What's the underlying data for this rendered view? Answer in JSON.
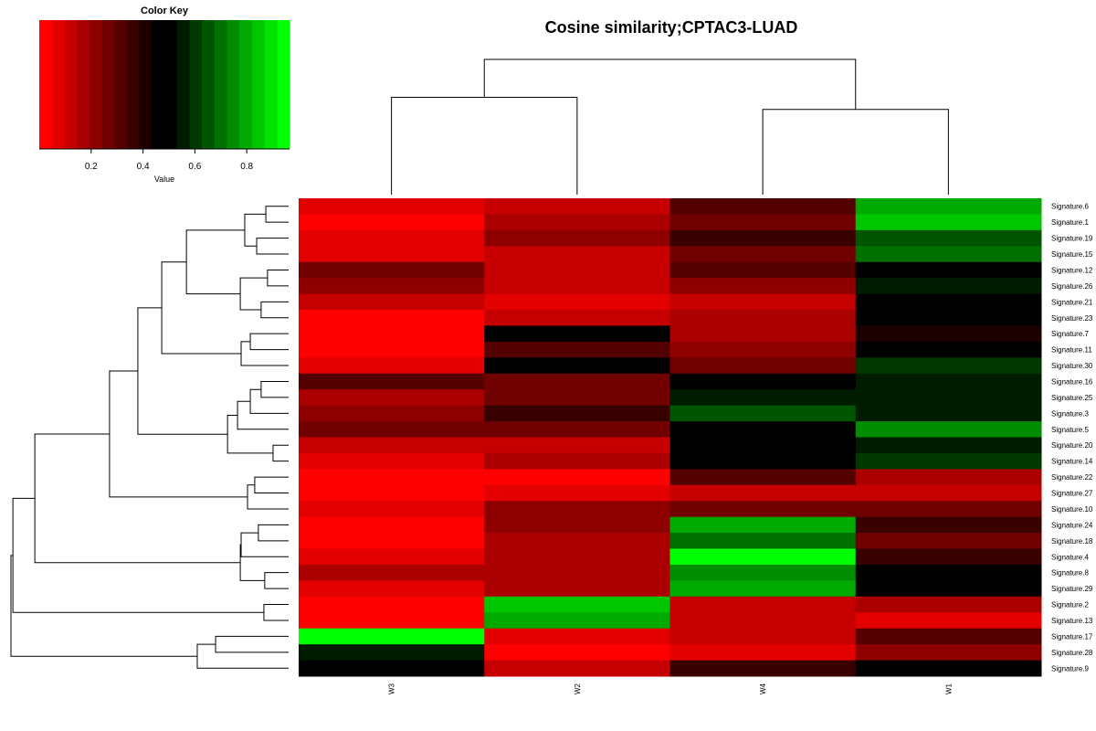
{
  "chart_data": {
    "type": "heatmap",
    "title": "Cosine similarity;CPTAC3-LUAD",
    "color_key": {
      "title": "Color Key",
      "xlabel": "Value",
      "range": [
        0.0,
        0.965
      ],
      "ticks": [
        0.2,
        0.4,
        0.6,
        0.8
      ],
      "tick_labels": [
        "0.2",
        "0.4",
        "0.6",
        "0.8"
      ],
      "low_color": "#ff0000",
      "mid_color": "#000000",
      "high_color": "#00ff00",
      "bins": 20
    },
    "columns": [
      "W3",
      "W2",
      "W4",
      "W1"
    ],
    "rows": [
      "Signature.6",
      "Signature.1",
      "Signature.19",
      "Signature.15",
      "Signature.12",
      "Signature.26",
      "Signature.21",
      "Signature.23",
      "Signature.7",
      "Signature.11",
      "Signature.30",
      "Signature.16",
      "Signature.25",
      "Signature.3",
      "Signature.5",
      "Signature.20",
      "Signature.14",
      "Signature.22",
      "Signature.27",
      "Signature.10",
      "Signature.24",
      "Signature.18",
      "Signature.4",
      "Signature.8",
      "Signature.29",
      "Signature.2",
      "Signature.13",
      "Signature.17",
      "Signature.28",
      "Signature.9"
    ],
    "values": [
      [
        0.06,
        0.1,
        0.32,
        0.81
      ],
      [
        0.02,
        0.15,
        0.26,
        0.86
      ],
      [
        0.06,
        0.21,
        0.37,
        0.64
      ],
      [
        0.06,
        0.1,
        0.26,
        0.7
      ],
      [
        0.27,
        0.1,
        0.32,
        0.5
      ],
      [
        0.21,
        0.1,
        0.21,
        0.54
      ],
      [
        0.1,
        0.06,
        0.1,
        0.49
      ],
      [
        0.02,
        0.1,
        0.15,
        0.49
      ],
      [
        0.02,
        0.49,
        0.15,
        0.43
      ],
      [
        0.02,
        0.32,
        0.21,
        0.5
      ],
      [
        0.06,
        0.5,
        0.26,
        0.58
      ],
      [
        0.33,
        0.26,
        0.5,
        0.54
      ],
      [
        0.15,
        0.26,
        0.54,
        0.54
      ],
      [
        0.21,
        0.37,
        0.64,
        0.54
      ],
      [
        0.27,
        0.26,
        0.5,
        0.75
      ],
      [
        0.1,
        0.1,
        0.5,
        0.54
      ],
      [
        0.06,
        0.15,
        0.49,
        0.58
      ],
      [
        0.02,
        0.02,
        0.32,
        0.15
      ],
      [
        0.02,
        0.06,
        0.1,
        0.1
      ],
      [
        0.06,
        0.21,
        0.26,
        0.26
      ],
      [
        0.02,
        0.21,
        0.81,
        0.37
      ],
      [
        0.02,
        0.15,
        0.7,
        0.26
      ],
      [
        0.06,
        0.15,
        0.96,
        0.37
      ],
      [
        0.15,
        0.15,
        0.75,
        0.5
      ],
      [
        0.06,
        0.15,
        0.81,
        0.49
      ],
      [
        0.02,
        0.86,
        0.1,
        0.15
      ],
      [
        0.02,
        0.81,
        0.1,
        0.06
      ],
      [
        0.96,
        0.06,
        0.1,
        0.32
      ],
      [
        0.54,
        0.02,
        0.06,
        0.21
      ],
      [
        0.5,
        0.1,
        0.37,
        0.49
      ]
    ],
    "column_dendrogram": [
      [
        "W3",
        "W2",
        0.72
      ],
      [
        "W4",
        "W1",
        0.63
      ],
      1.0
    ],
    "row_dendrogram": [
      [
        [
          [
            [
              [
                [
                  [
                    [
                      "Signature.6",
                      "Signature.1",
                      0.082
                    ],
                    [
                      "Signature.19",
                      "Signature.15",
                      0.115
                    ],
                    0.158
                  ],
                  [
                    [
                      "Signature.12",
                      "Signature.26",
                      0.076
                    ],
                    [
                      "Signature.21",
                      "Signature.23",
                      0.099
                    ],
                    0.174
                  ],
                  0.368
                ],
                [
                  [
                    "Signature.7",
                    "Signature.11",
                    0.138
                  ],
                  "Signature.30",
                  0.171
                ],
                0.457
              ],
              [
                [
                  [
                    [
                      "Signature.16",
                      "Signature.25",
                      0.099
                    ],
                    "Signature.3",
                    0.138
                  ],
                  "Signature.5",
                  0.184
                ],
                [
                  "Signature.20",
                  "Signature.14",
                  0.056
                ],
                0.22
              ],
              0.543
            ],
            [
              [
                "Signature.22",
                "Signature.27",
                0.122
              ],
              "Signature.10",
              0.148
            ],
            0.645
          ],
          [
            [
              [
                "Signature.24",
                "Signature.18",
                0.109
              ],
              "Signature.4",
              0.171
            ],
            [
              "Signature.8",
              "Signature.29",
              0.086
            ],
            0.174
          ],
          0.914
        ],
        [
          "Signature.2",
          "Signature.13",
          0.089
        ],
        0.993
      ],
      [
        [
          "Signature.17",
          "Signature.28",
          0.263
        ],
        "Signature.9",
        0.329
      ],
      1.0
    ]
  }
}
